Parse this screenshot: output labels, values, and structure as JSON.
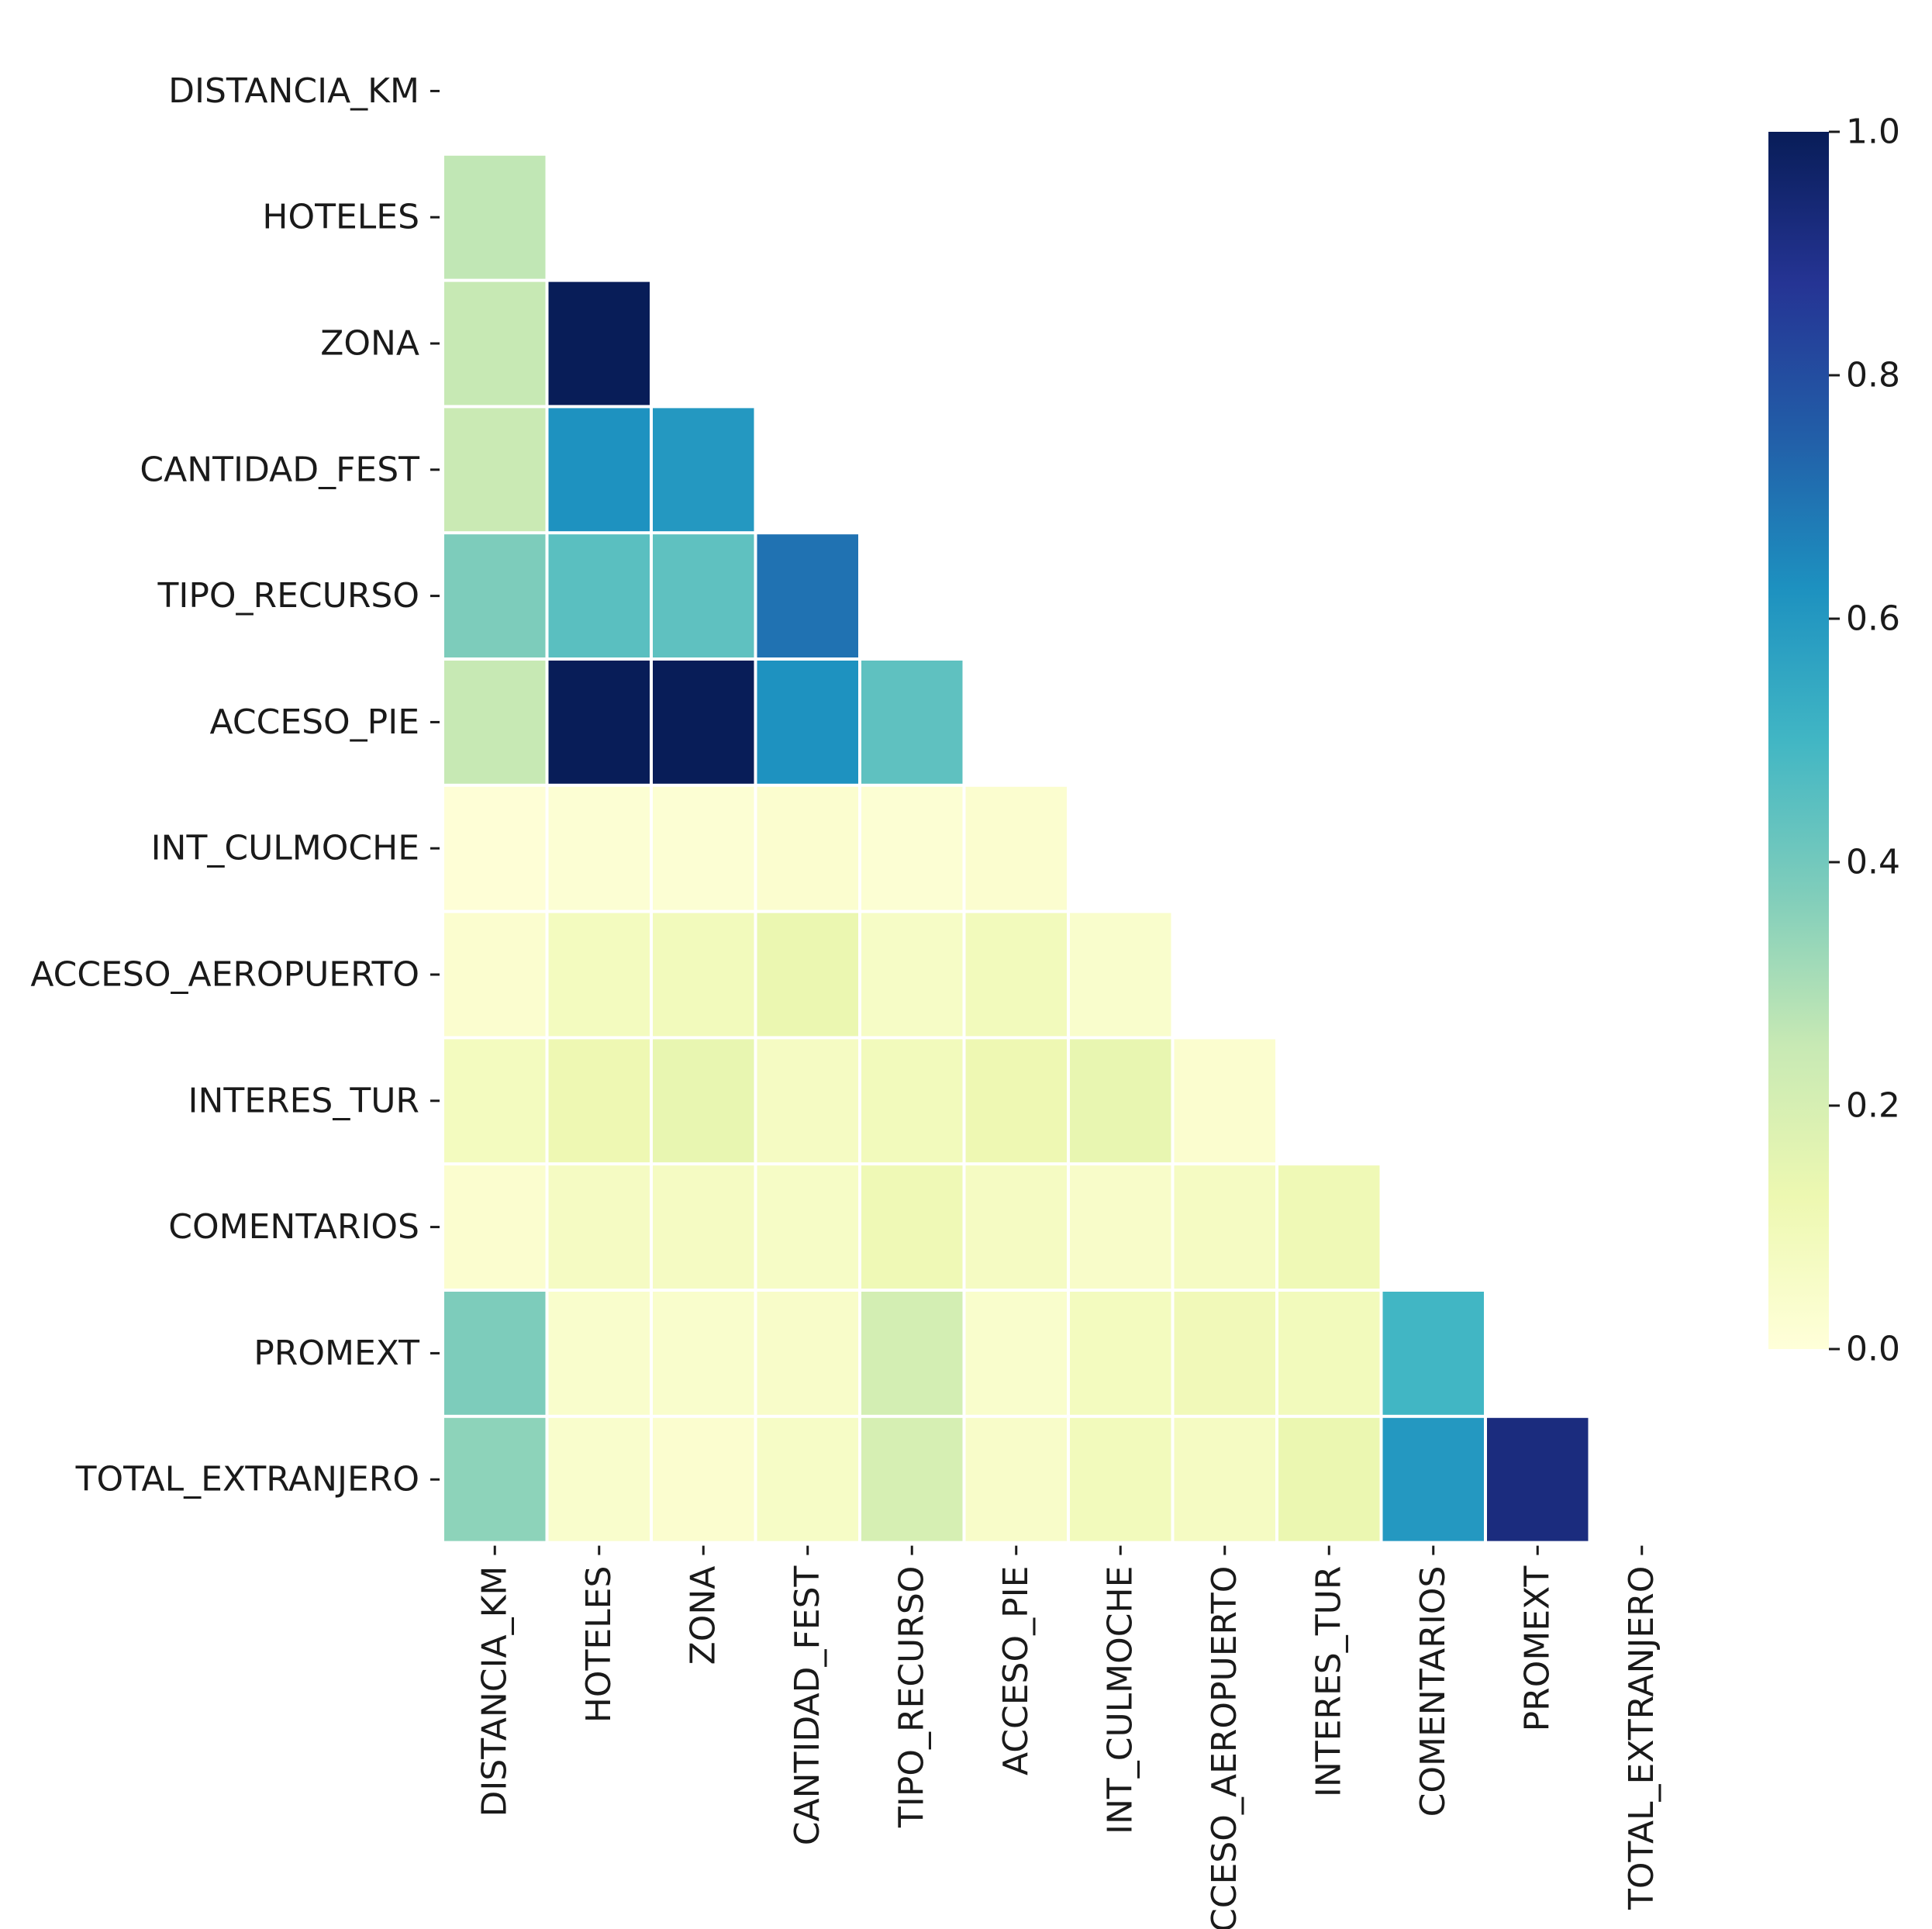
{
  "chart_data": {
    "type": "heatmap",
    "title": "",
    "xlabel": "",
    "ylabel": "",
    "mask": "upper-triangle-including-diagonal",
    "colormap": "YlGnBu",
    "categories": [
      "DISTANCIA_KM",
      "HOTELES",
      "ZONA",
      "CANTIDAD_FEST",
      "TIPO_RECURSO",
      "ACCESO_PIE",
      "INT_CULMOCHE",
      "ACCESO_AEROPUERTO",
      "INTERES_TUR",
      "COMENTARIOS",
      "PROMEXT",
      "TOTAL_EXTRANJERO"
    ],
    "matrix": [
      [
        null,
        null,
        null,
        null,
        null,
        null,
        null,
        null,
        null,
        null,
        null,
        null
      ],
      [
        0.26,
        null,
        null,
        null,
        null,
        null,
        null,
        null,
        null,
        null,
        null,
        null
      ],
      [
        0.25,
        1.0,
        null,
        null,
        null,
        null,
        null,
        null,
        null,
        null,
        null,
        null
      ],
      [
        0.24,
        0.62,
        0.6,
        null,
        null,
        null,
        null,
        null,
        null,
        null,
        null,
        null
      ],
      [
        0.38,
        0.45,
        0.44,
        0.7,
        null,
        null,
        null,
        null,
        null,
        null,
        null,
        null
      ],
      [
        0.25,
        1.0,
        1.0,
        0.62,
        0.44,
        null,
        null,
        null,
        null,
        null,
        null,
        null
      ],
      [
        0.01,
        0.02,
        0.02,
        0.03,
        0.02,
        0.03,
        null,
        null,
        null,
        null,
        null,
        null
      ],
      [
        0.03,
        0.08,
        0.09,
        0.13,
        0.06,
        0.09,
        0.04,
        null,
        null,
        null,
        null,
        null
      ],
      [
        0.08,
        0.12,
        0.14,
        0.07,
        0.09,
        0.12,
        0.14,
        0.03,
        null,
        null,
        null,
        null
      ],
      [
        0.03,
        0.07,
        0.07,
        0.06,
        0.11,
        0.07,
        0.05,
        0.07,
        0.11,
        null,
        null,
        null
      ],
      [
        0.38,
        0.04,
        0.04,
        0.05,
        0.21,
        0.04,
        0.08,
        0.1,
        0.09,
        0.5,
        null,
        null
      ],
      [
        0.35,
        0.04,
        0.03,
        0.06,
        0.2,
        0.05,
        0.09,
        0.07,
        0.13,
        0.6,
        0.92,
        null
      ]
    ],
    "colorbar": {
      "range": [
        0.0,
        1.0
      ],
      "ticks": [
        "0.0",
        "0.2",
        "0.4",
        "0.6",
        "0.8",
        "1.0"
      ],
      "tick_values": [
        0.0,
        0.2,
        0.4,
        0.6,
        0.8,
        1.0
      ]
    },
    "colors": {
      "cell_border": "#ffffff",
      "text": "#1a1a1a",
      "tick": "#1a1a1a",
      "colormap_stops": [
        "#ffffd9",
        "#edf8b1",
        "#c7e9b4",
        "#7fcdbb",
        "#41b6c4",
        "#1d91c0",
        "#225ea8",
        "#253494",
        "#081d58"
      ]
    }
  }
}
